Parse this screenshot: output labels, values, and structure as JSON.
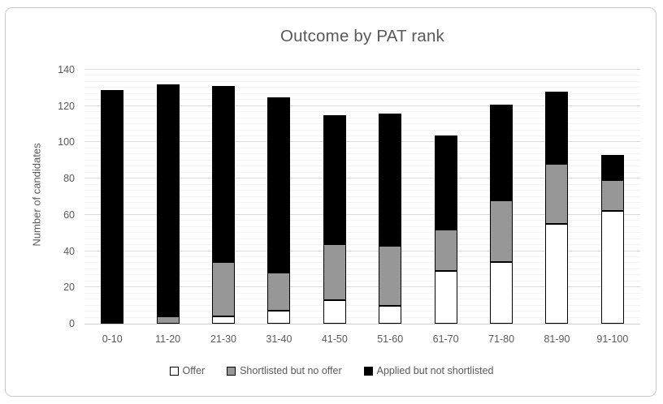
{
  "chart_data": {
    "type": "bar",
    "stacked": true,
    "title": "Outcome by PAT rank",
    "xlabel": "",
    "ylabel": "Number of candidates",
    "categories": [
      "0-10",
      "11-20",
      "21-30",
      "31-40",
      "41-50",
      "51-60",
      "61-70",
      "71-80",
      "81-90",
      "91-100"
    ],
    "series": [
      {
        "name": "Offer",
        "color": "#ffffff",
        "values": [
          0,
          0,
          4,
          7,
          13,
          10,
          29,
          34,
          55,
          62
        ]
      },
      {
        "name": "Shortlisted but no offer",
        "color": "#979797",
        "values": [
          0,
          4,
          30,
          21,
          31,
          33,
          23,
          34,
          33,
          17
        ]
      },
      {
        "name": "Applied but not shortlisted",
        "color": "#000000",
        "values": [
          129,
          128,
          97,
          97,
          71,
          73,
          52,
          53,
          40,
          14
        ]
      }
    ],
    "totals": [
      129,
      132,
      131,
      125,
      115,
      116,
      104,
      121,
      128,
      93
    ],
    "ylim": [
      0,
      140
    ],
    "ytick_step": 20,
    "yticks": [
      0,
      20,
      40,
      60,
      80,
      100,
      120,
      140
    ],
    "minor_per_major": 6,
    "grid": true,
    "legend_position": "bottom"
  },
  "colors": {
    "text": "#595959",
    "major_gridline": "#d9d9d9",
    "minor_gridline": "#f2f2f2",
    "frame_border": "#c9c9c9",
    "segment_outline": "#000000"
  }
}
